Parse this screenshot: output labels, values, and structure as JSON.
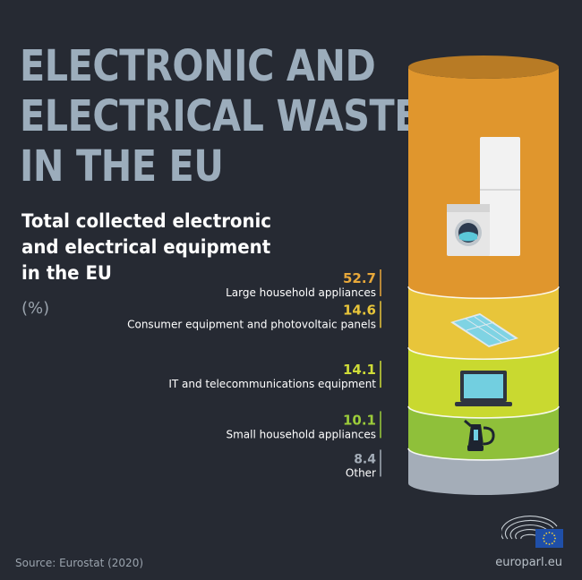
{
  "header": {
    "title_lines": [
      "ELECTRONIC AND",
      "ELECTRICAL WASTE",
      "IN THE EU"
    ],
    "subtitle_lines": [
      "Total collected electronic",
      "and electrical equipment",
      "in the EU"
    ],
    "unit": "(%)"
  },
  "chart_data": {
    "type": "stacked-cylinder",
    "title": "Total collected electronic and electrical equipment in the EU",
    "unit": "%",
    "categories": [
      "Large household appliances",
      "Consumer equipment and photovoltaic panels",
      "IT and telecommunications equipment",
      "Small household appliances",
      "Other"
    ],
    "values": [
      52.7,
      14.6,
      14.1,
      10.1,
      8.4
    ],
    "value_labels": [
      "52.7",
      "14.6",
      "14.1",
      "10.1",
      "8.4"
    ],
    "colors": [
      "#e0962d",
      "#e8c53a",
      "#c9d930",
      "#8fc03a",
      "#a4adb8"
    ],
    "label_colors": [
      "#e8a83a",
      "#e8c53a",
      "#cfdc38",
      "#9ccc3a",
      "#a4adb8"
    ],
    "icons": [
      "fridge-and-washing-machine-icon",
      "solar-panel-icon",
      "laptop-icon",
      "kettle-icon",
      ""
    ]
  },
  "footer": {
    "source": "Source: Eurostat (2020)",
    "site": "europarl.eu"
  },
  "colors": {
    "background": "#262a33",
    "title": "#9cadbc",
    "subtitle": "#ffffff"
  }
}
